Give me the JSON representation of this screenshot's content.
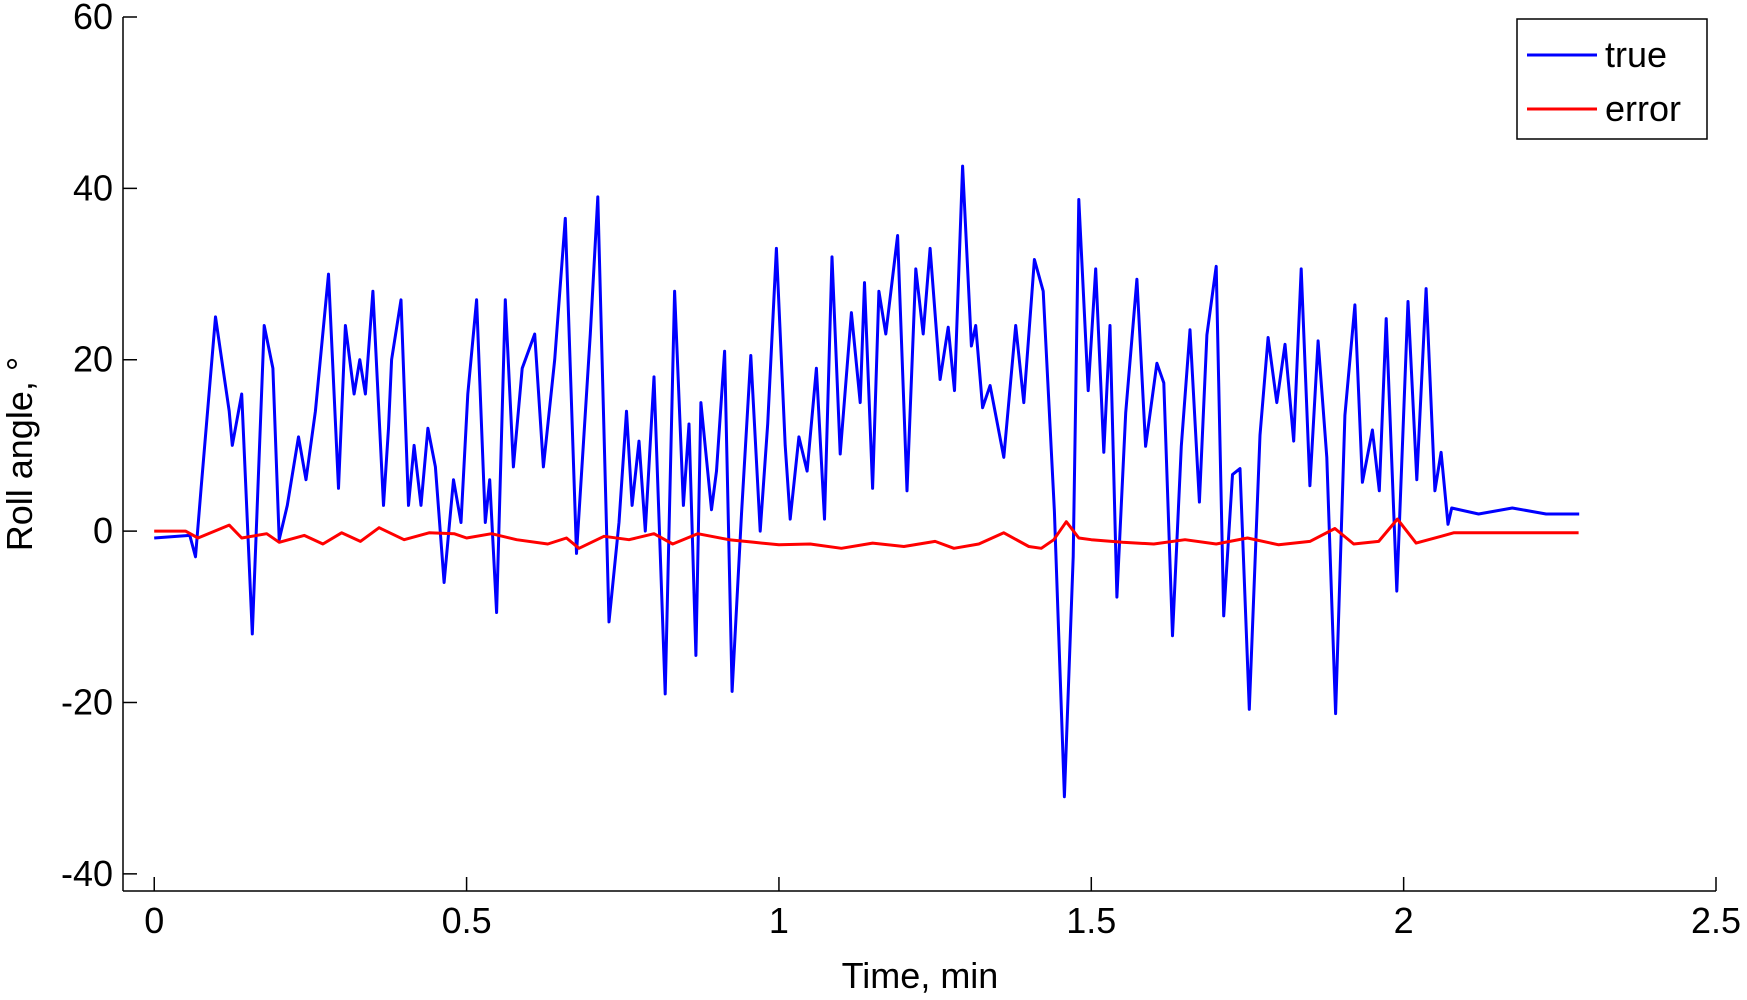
{
  "chart_data": {
    "type": "line",
    "xlabel": "Time, min",
    "ylabel": "Roll angle, °",
    "xlim": [
      -0.05,
      2.5
    ],
    "ylim": [
      -42,
      60
    ],
    "xticks": [
      0,
      0.5,
      1,
      1.5,
      2,
      2.5
    ],
    "yticks": [
      -40,
      -20,
      0,
      20,
      40,
      60
    ],
    "grid": false,
    "legend": "northeast",
    "series": [
      {
        "name": "true",
        "color": "#0000ff",
        "x": [
          0,
          0.057,
          0.066,
          0.075,
          0.098,
          0.12,
          0.125,
          0.14,
          0.157,
          0.176,
          0.19,
          0.2,
          0.213,
          0.231,
          0.243,
          0.258,
          0.279,
          0.295,
          0.306,
          0.32,
          0.329,
          0.338,
          0.35,
          0.367,
          0.375,
          0.38,
          0.395,
          0.407,
          0.416,
          0.427,
          0.438,
          0.45,
          0.464,
          0.479,
          0.491,
          0.502,
          0.516,
          0.53,
          0.537,
          0.548,
          0.562,
          0.575,
          0.589,
          0.609,
          0.623,
          0.641,
          0.658,
          0.676,
          0.698,
          0.71,
          0.728,
          0.744,
          0.756,
          0.765,
          0.776,
          0.786,
          0.8,
          0.818,
          0.833,
          0.847,
          0.856,
          0.867,
          0.875,
          0.892,
          0.9,
          0.913,
          0.925,
          0.94,
          0.955,
          0.97,
          0.982,
          0.996,
          1.01,
          1.018,
          1.032,
          1.045,
          1.06,
          1.073,
          1.085,
          1.098,
          1.116,
          1.13,
          1.137,
          1.15,
          1.16,
          1.171,
          1.19,
          1.205,
          1.219,
          1.231,
          1.242,
          1.258,
          1.271,
          1.281,
          1.294,
          1.308,
          1.315,
          1.326,
          1.338,
          1.36,
          1.379,
          1.392,
          1.409,
          1.423,
          1.441,
          1.457,
          1.471,
          1.48,
          1.495,
          1.507,
          1.52,
          1.53,
          1.541,
          1.555,
          1.573,
          1.587,
          1.605,
          1.616,
          1.63,
          1.644,
          1.658,
          1.673,
          1.685,
          1.7,
          1.712,
          1.726,
          1.738,
          1.753,
          1.77,
          1.783,
          1.797,
          1.81,
          1.824,
          1.836,
          1.85,
          1.863,
          1.877,
          1.891,
          1.906,
          1.922,
          1.934,
          1.95,
          1.961,
          1.972,
          1.989,
          2.007,
          2.021,
          2.036,
          2.05,
          2.06,
          2.071,
          2.077,
          2.12,
          2.174,
          2.228,
          2.281
        ],
        "values": [
          -0.8,
          -0.5,
          -3,
          5,
          25,
          14,
          10,
          16,
          -12,
          24,
          19,
          -1,
          3,
          11,
          6,
          14,
          30,
          5,
          24,
          16,
          20,
          16,
          28,
          3,
          12,
          20,
          27,
          3,
          10,
          3,
          12,
          7.5,
          -6,
          6,
          1,
          16,
          27,
          1,
          6,
          -9.5,
          27,
          7.5,
          19,
          23,
          7.5,
          20,
          36.5,
          -2.6,
          23,
          39,
          -10.6,
          1,
          14,
          3,
          10.5,
          0,
          18,
          -19,
          28,
          3,
          12.5,
          -14.5,
          15,
          2.5,
          7,
          21,
          -18.7,
          2,
          20.5,
          0,
          12.5,
          33,
          10,
          1.4,
          11,
          7,
          19,
          1.4,
          32,
          9,
          25.5,
          15,
          29,
          5,
          28,
          23,
          34.5,
          4.7,
          30.6,
          23,
          33,
          17.7,
          23.8,
          16.4,
          42.6,
          21.6,
          24,
          14.4,
          17,
          8.6,
          24,
          15,
          31.7,
          28,
          2.3,
          -31,
          -3,
          38.7,
          16.4,
          30.6,
          9.2,
          24,
          -7.7,
          13.8,
          29.4,
          9.9,
          19.6,
          17.3,
          -12.2,
          9.9,
          23.5,
          3.4,
          22.9,
          30.9,
          -9.9,
          6.6,
          7.3,
          -20.8,
          11.2,
          22.6,
          15,
          21.8,
          10.5,
          30.6,
          5.3,
          22.2,
          8.6,
          -21.3,
          13.5,
          26.4,
          5.7,
          11.8,
          4.7,
          24.8,
          -7,
          26.8,
          6,
          28.3,
          4.7,
          9.2,
          0.8,
          2.7,
          2,
          2.7,
          2,
          2
        ]
      },
      {
        "name": "error",
        "color": "#ff0000",
        "x": [
          0,
          0.05,
          0.07,
          0.12,
          0.14,
          0.18,
          0.2,
          0.24,
          0.27,
          0.3,
          0.33,
          0.36,
          0.4,
          0.44,
          0.48,
          0.5,
          0.54,
          0.58,
          0.63,
          0.66,
          0.68,
          0.72,
          0.76,
          0.8,
          0.83,
          0.87,
          0.92,
          0.96,
          1.0,
          1.05,
          1.1,
          1.15,
          1.2,
          1.25,
          1.28,
          1.32,
          1.36,
          1.4,
          1.42,
          1.44,
          1.46,
          1.48,
          1.5,
          1.55,
          1.6,
          1.65,
          1.7,
          1.75,
          1.8,
          1.85,
          1.89,
          1.92,
          1.96,
          1.99,
          2.02,
          2.06,
          2.08,
          2.15,
          2.28
        ],
        "values": [
          0,
          0,
          -0.8,
          0.7,
          -0.8,
          -0.3,
          -1.3,
          -0.5,
          -1.5,
          -0.2,
          -1.2,
          0.4,
          -1,
          -0.2,
          -0.3,
          -0.8,
          -0.3,
          -1,
          -1.5,
          -0.8,
          -2,
          -0.6,
          -1,
          -0.3,
          -1.5,
          -0.3,
          -1,
          -1.3,
          -1.6,
          -1.5,
          -2,
          -1.4,
          -1.8,
          -1.2,
          -2,
          -1.5,
          -0.2,
          -1.8,
          -2,
          -1,
          1.1,
          -0.8,
          -1,
          -1.3,
          -1.5,
          -1,
          -1.5,
          -0.8,
          -1.6,
          -1.2,
          0.3,
          -1.5,
          -1.2,
          1.4,
          -1.4,
          -0.6,
          -0.2,
          -0.2,
          -0.2
        ]
      }
    ]
  }
}
